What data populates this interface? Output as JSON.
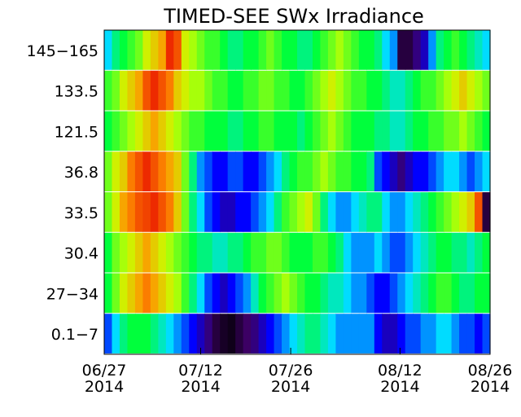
{
  "chart_data": {
    "type": "heatmap",
    "title": "TIMED-SEE SWx Irradiance",
    "xlabel": "",
    "ylabel": "",
    "x_range": [
      "2014-06-27",
      "2014-08-26"
    ],
    "x_ticks": [
      {
        "date": "2014-06-27",
        "label_top": "06/27",
        "label_bottom": "2014"
      },
      {
        "date": "2014-07-12",
        "label_top": "07/12",
        "label_bottom": "2014"
      },
      {
        "date": "2014-07-26",
        "label_top": "07/26",
        "label_bottom": "2014"
      },
      {
        "date": "2014-08-12",
        "label_top": "08/12",
        "label_bottom": "2014"
      },
      {
        "date": "2014-08-26",
        "label_top": "08/26",
        "label_bottom": "2014"
      }
    ],
    "rows": [
      {
        "label": "145-165",
        "values": [
          0.35,
          0.45,
          0.5,
          0.55,
          0.6,
          0.7,
          0.75,
          0.8,
          0.95,
          0.9,
          0.7,
          0.65,
          0.6,
          0.55,
          0.55,
          0.5,
          0.45,
          0.45,
          0.5,
          0.5,
          0.55,
          0.6,
          0.55,
          0.5,
          0.5,
          0.45,
          0.45,
          0.5,
          0.55,
          0.6,
          0.65,
          0.6,
          0.55,
          0.5,
          0.5,
          0.45,
          0.35,
          0.3,
          0.05,
          0.05,
          0.1,
          0.15,
          0.3,
          0.45,
          0.5,
          0.55,
          0.5,
          0.45,
          0.4,
          0.35
        ]
      },
      {
        "label": "133.5",
        "values": [
          0.55,
          0.6,
          0.7,
          0.75,
          0.8,
          0.9,
          0.95,
          0.9,
          0.85,
          0.75,
          0.7,
          0.65,
          0.65,
          0.6,
          0.55,
          0.55,
          0.5,
          0.5,
          0.55,
          0.55,
          0.6,
          0.6,
          0.55,
          0.55,
          0.5,
          0.5,
          0.55,
          0.6,
          0.65,
          0.7,
          0.65,
          0.6,
          0.55,
          0.55,
          0.5,
          0.5,
          0.45,
          0.4,
          0.4,
          0.45,
          0.5,
          0.55,
          0.55,
          0.6,
          0.65,
          0.7,
          0.75,
          0.7,
          0.65,
          0.6
        ]
      },
      {
        "label": "121.5",
        "values": [
          0.5,
          0.55,
          0.6,
          0.65,
          0.7,
          0.75,
          0.8,
          0.75,
          0.7,
          0.65,
          0.6,
          0.55,
          0.55,
          0.5,
          0.5,
          0.5,
          0.45,
          0.45,
          0.5,
          0.5,
          0.55,
          0.55,
          0.5,
          0.5,
          0.5,
          0.45,
          0.5,
          0.55,
          0.6,
          0.65,
          0.6,
          0.55,
          0.5,
          0.5,
          0.5,
          0.45,
          0.45,
          0.4,
          0.4,
          0.45,
          0.5,
          0.5,
          0.55,
          0.55,
          0.6,
          0.6,
          0.65,
          0.6,
          0.55,
          0.5
        ]
      },
      {
        "label": "36.8",
        "values": [
          0.6,
          0.7,
          0.75,
          0.85,
          0.9,
          0.95,
          0.9,
          0.85,
          0.8,
          0.75,
          0.6,
          0.45,
          0.3,
          0.25,
          0.2,
          0.2,
          0.25,
          0.25,
          0.2,
          0.2,
          0.25,
          0.3,
          0.35,
          0.45,
          0.5,
          0.55,
          0.55,
          0.6,
          0.65,
          0.6,
          0.55,
          0.55,
          0.5,
          0.5,
          0.45,
          0.25,
          0.2,
          0.15,
          0.1,
          0.15,
          0.2,
          0.2,
          0.25,
          0.3,
          0.35,
          0.35,
          0.3,
          0.25,
          0.3,
          0.35
        ]
      },
      {
        "label": "33.5",
        "values": [
          0.6,
          0.7,
          0.8,
          0.85,
          0.9,
          0.92,
          0.95,
          0.9,
          0.85,
          0.75,
          0.6,
          0.45,
          0.35,
          0.25,
          0.2,
          0.15,
          0.15,
          0.2,
          0.2,
          0.25,
          0.3,
          0.35,
          0.45,
          0.55,
          0.6,
          0.65,
          0.7,
          0.6,
          0.45,
          0.35,
          0.3,
          0.3,
          0.35,
          0.4,
          0.45,
          0.45,
          0.35,
          0.3,
          0.3,
          0.35,
          0.4,
          0.45,
          0.5,
          0.55,
          0.6,
          0.65,
          0.7,
          0.75,
          0.9,
          0.05
        ]
      },
      {
        "label": "30.4",
        "values": [
          0.5,
          0.6,
          0.65,
          0.7,
          0.75,
          0.8,
          0.75,
          0.7,
          0.65,
          0.6,
          0.55,
          0.5,
          0.45,
          0.45,
          0.4,
          0.4,
          0.45,
          0.45,
          0.5,
          0.55,
          0.55,
          0.6,
          0.6,
          0.55,
          0.5,
          0.5,
          0.5,
          0.55,
          0.55,
          0.5,
          0.45,
          0.35,
          0.3,
          0.3,
          0.3,
          0.35,
          0.3,
          0.25,
          0.25,
          0.3,
          0.35,
          0.4,
          0.45,
          0.5,
          0.5,
          0.45,
          0.45,
          0.4,
          0.45,
          0.5
        ]
      },
      {
        "label": "27-34",
        "values": [
          0.5,
          0.6,
          0.7,
          0.75,
          0.8,
          0.85,
          0.8,
          0.75,
          0.7,
          0.65,
          0.55,
          0.45,
          0.35,
          0.25,
          0.2,
          0.15,
          0.2,
          0.25,
          0.3,
          0.4,
          0.5,
          0.55,
          0.6,
          0.65,
          0.6,
          0.55,
          0.5,
          0.5,
          0.45,
          0.4,
          0.4,
          0.35,
          0.3,
          0.3,
          0.25,
          0.2,
          0.2,
          0.25,
          0.3,
          0.35,
          0.4,
          0.45,
          0.5,
          0.55,
          0.55,
          0.5,
          0.45,
          0.45,
          0.5,
          0.5
        ]
      },
      {
        "label": "0.1-7",
        "values": [
          0.25,
          0.35,
          0.45,
          0.5,
          0.5,
          0.5,
          0.45,
          0.4,
          0.35,
          0.3,
          0.25,
          0.2,
          0.15,
          0.1,
          0.05,
          0.03,
          0.02,
          0.05,
          0.08,
          0.1,
          0.15,
          0.2,
          0.25,
          0.3,
          0.35,
          0.4,
          0.45,
          0.45,
          0.4,
          0.35,
          0.3,
          0.3,
          0.3,
          0.3,
          0.3,
          0.2,
          0.15,
          0.15,
          0.2,
          0.25,
          0.25,
          0.3,
          0.3,
          0.35,
          0.35,
          0.3,
          0.25,
          0.25,
          0.2,
          0.25
        ]
      }
    ],
    "colormap": "rainbow (black-purple-blue-cyan-green-yellow-red)",
    "value_scale": "normalized irradiance 0-1",
    "legend": "none",
    "grid": false
  }
}
